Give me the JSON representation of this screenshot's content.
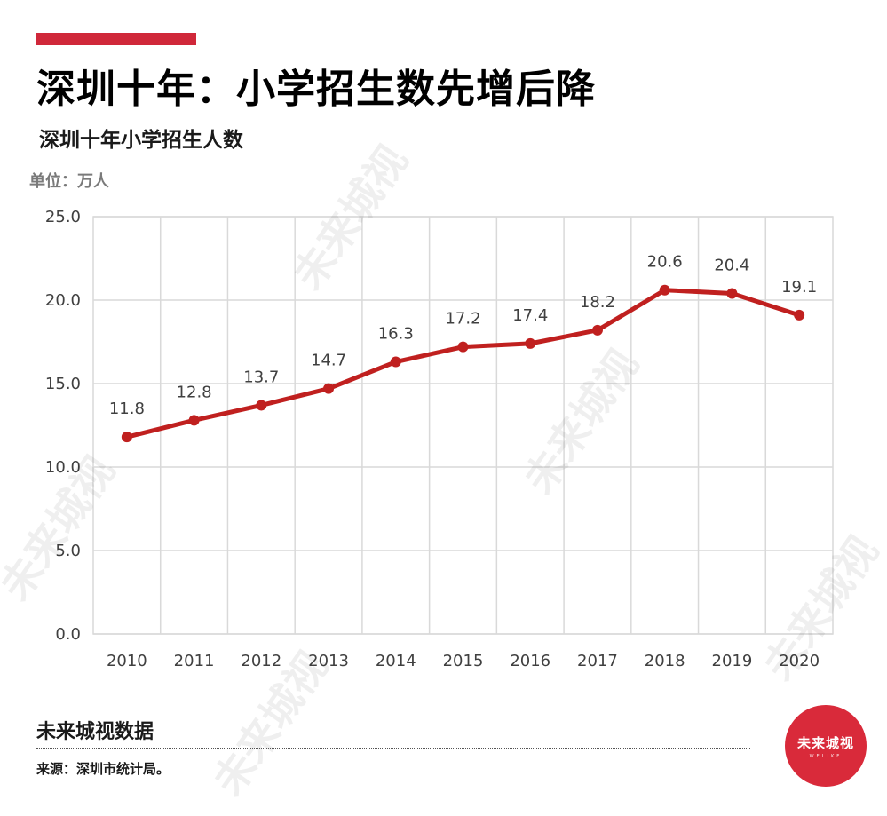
{
  "header": {
    "headline": "深圳十年：小学招生数先增后降",
    "subtitle": "深圳十年小学招生人数",
    "unit": "单位：万人"
  },
  "colors": {
    "accent": "#d0283a",
    "line": "#c0201f",
    "grid": "#d9d9d9"
  },
  "chart_data": {
    "type": "line",
    "title": "深圳十年小学招生人数",
    "xlabel": "",
    "ylabel": "单位：万人",
    "ylim": [
      0,
      25
    ],
    "yticks": [
      "0.0",
      "5.0",
      "10.0",
      "15.0",
      "20.0",
      "25.0"
    ],
    "grid": true,
    "categories": [
      "2010",
      "2011",
      "2012",
      "2013",
      "2014",
      "2015",
      "2016",
      "2017",
      "2018",
      "2019",
      "2020"
    ],
    "series": [
      {
        "name": "小学招生人数",
        "values": [
          11.8,
          12.8,
          13.7,
          14.7,
          16.3,
          17.2,
          17.4,
          18.2,
          20.6,
          20.4,
          19.1
        ],
        "labels": [
          "11.8",
          "12.8",
          "13.7",
          "14.7",
          "16.3",
          "17.2",
          "17.4",
          "18.2",
          "20.6",
          "20.4",
          "19.1"
        ]
      }
    ]
  },
  "footer": {
    "brand": "未来城视数据",
    "source": "来源：深圳市统计局。",
    "logo_text": "未来城视",
    "logo_sub": "WELIKE"
  },
  "watermark": {
    "text": "未来城视"
  }
}
